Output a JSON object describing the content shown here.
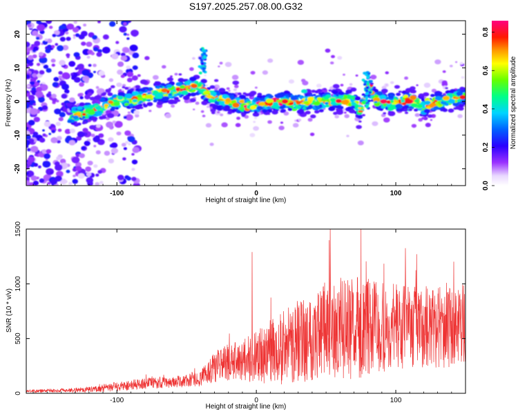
{
  "figure": {
    "title": "S197.2025.257.08.00.G32"
  },
  "chart_data": [
    {
      "type": "heatmap",
      "title": "S197.2025.257.08.00.G32",
      "xlabel": "Height of straight line (km)",
      "ylabel": "Frequency (Hz)",
      "xlim": [
        -165,
        150
      ],
      "ylim": [
        -25,
        24
      ],
      "x_ticks": [
        -100,
        0,
        100
      ],
      "y_ticks": [
        -20,
        -10,
        0,
        10,
        20
      ],
      "colorbar": {
        "label": "Normalized spectral amplitude",
        "range": [
          0.0,
          0.86
        ],
        "ticks": [
          "0.0",
          "0.2",
          "0.4",
          "0.6",
          "0.8"
        ],
        "colormap": "rainbow (white-violet-blue-cyan-green-yellow-red-magenta)"
      },
      "ridge": {
        "description": "dominant frequency ridge vs height",
        "x": [
          -130,
          -120,
          -110,
          -100,
          -90,
          -80,
          -70,
          -60,
          -50,
          -40,
          -35,
          -30,
          -20,
          -10,
          0,
          10,
          20,
          30,
          40,
          50,
          60,
          70,
          75,
          80,
          85,
          90,
          100,
          110,
          120,
          130,
          140,
          150
        ],
        "y": [
          -4,
          -3,
          -1.5,
          0,
          0.5,
          1.5,
          2.5,
          3,
          4,
          4.5,
          2,
          1,
          0,
          -1,
          -1,
          -0.5,
          0,
          -0.5,
          0,
          0,
          0.5,
          0,
          -3,
          5,
          1,
          0,
          -0.5,
          0.5,
          -1.5,
          0,
          0.5,
          1.5
        ]
      }
    },
    {
      "type": "line",
      "xlabel": "Height of straight line (km)",
      "ylabel": "SNR (10 * v/v)",
      "xlim": [
        -165,
        150
      ],
      "ylim": [
        0,
        1500
      ],
      "x_ticks": [
        -100,
        0,
        100
      ],
      "y_ticks": [
        0,
        500,
        1000,
        1500
      ],
      "color": "#ee3333",
      "envelope": {
        "description": "approximate mean SNR trend vs height",
        "x": [
          -165,
          -140,
          -120,
          -100,
          -80,
          -60,
          -40,
          -30,
          -20,
          -10,
          0,
          10,
          20,
          30,
          50,
          70,
          90,
          110,
          130,
          150
        ],
        "mean": [
          20,
          25,
          35,
          60,
          90,
          100,
          130,
          250,
          280,
          300,
          330,
          380,
          420,
          480,
          580,
          600,
          600,
          620,
          600,
          600
        ],
        "spread": [
          15,
          20,
          30,
          50,
          60,
          60,
          80,
          180,
          200,
          220,
          280,
          350,
          400,
          450,
          550,
          550,
          500,
          450,
          450,
          400
        ]
      },
      "notable_peaks": [
        {
          "x": -3,
          "y": 1290
        },
        {
          "x": 53,
          "y": 1500
        },
        {
          "x": 75,
          "y": 1500
        }
      ]
    }
  ]
}
